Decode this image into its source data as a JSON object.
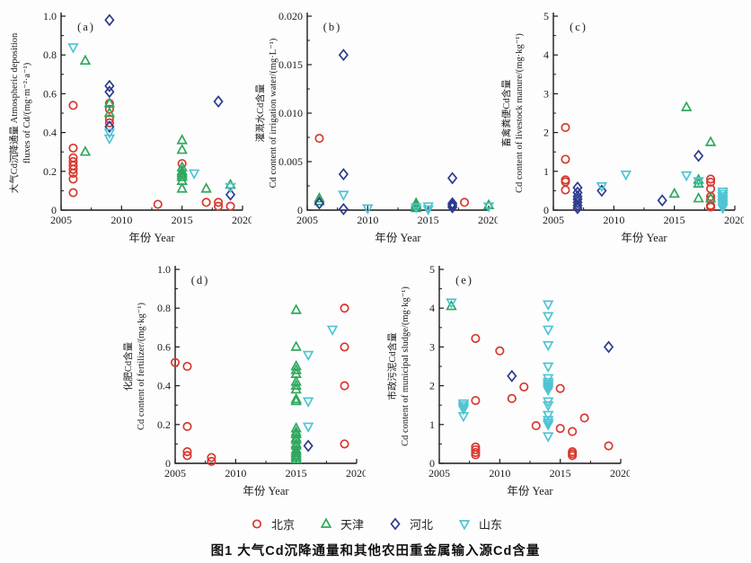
{
  "figure": {
    "caption": "图1  大气Cd沉降通量和其他农田重金属输入源Cd含量",
    "axis_color": "#1a1a1a",
    "legend": [
      {
        "label": "北京",
        "marker": "circle",
        "color": "#d7372e"
      },
      {
        "label": "天津",
        "marker": "triangle-up",
        "color": "#2fa85e"
      },
      {
        "label": "河北",
        "marker": "diamond",
        "color": "#2c3a8e"
      },
      {
        "label": "山东",
        "marker": "triangle-down",
        "color": "#4fc4d3"
      }
    ]
  },
  "chart_data": [
    {
      "type": "scatter",
      "panel": "(a)",
      "ylabel_line1": "大气Cd沉降通量 Atmospheric deposition",
      "ylabel_line2": "fluxes of Cd/(mg·m⁻²·a⁻¹)",
      "xlabel": "年份 Year",
      "xlim": [
        2005,
        2020
      ],
      "xticks": [
        2005,
        2010,
        2015,
        2020
      ],
      "ylim": [
        0,
        1.0
      ],
      "yticks": [
        0,
        0.2,
        0.4,
        0.6,
        0.8,
        1.0
      ],
      "ytick_labels": [
        "0",
        "0.2",
        "0.4",
        "0.6",
        "0.8",
        "1.0"
      ],
      "grid": false,
      "series": [
        {
          "name": "北京",
          "points": [
            [
              2006,
              0.54
            ],
            [
              2006,
              0.32
            ],
            [
              2006,
              0.27
            ],
            [
              2006,
              0.25
            ],
            [
              2006,
              0.23
            ],
            [
              2006,
              0.21
            ],
            [
              2006,
              0.19
            ],
            [
              2006,
              0.16
            ],
            [
              2006,
              0.09
            ],
            [
              2009,
              0.55
            ],
            [
              2009,
              0.52
            ],
            [
              2009,
              0.47
            ],
            [
              2009,
              0.45
            ],
            [
              2013,
              0.03
            ],
            [
              2015,
              0.24
            ],
            [
              2017,
              0.04
            ],
            [
              2018,
              0.04
            ],
            [
              2018,
              0.02
            ],
            [
              2019,
              0.02
            ]
          ]
        },
        {
          "name": "天津",
          "points": [
            [
              2007,
              0.77
            ],
            [
              2007,
              0.3
            ],
            [
              2009,
              0.55
            ],
            [
              2009,
              0.5
            ],
            [
              2015,
              0.36
            ],
            [
              2015,
              0.31
            ],
            [
              2015,
              0.22
            ],
            [
              2015,
              0.2
            ],
            [
              2015,
              0.19
            ],
            [
              2015,
              0.18
            ],
            [
              2015,
              0.17
            ],
            [
              2015,
              0.15
            ],
            [
              2015,
              0.11
            ],
            [
              2017,
              0.11
            ],
            [
              2019,
              0.13
            ]
          ]
        },
        {
          "name": "河北",
          "points": [
            [
              2009,
              0.98
            ],
            [
              2009,
              0.64
            ],
            [
              2009,
              0.61
            ],
            [
              2009,
              0.43
            ],
            [
              2018,
              0.56
            ],
            [
              2019,
              0.08
            ]
          ]
        },
        {
          "name": "山东",
          "points": [
            [
              2006,
              0.84
            ],
            [
              2009,
              0.4
            ],
            [
              2009,
              0.37
            ],
            [
              2016,
              0.19
            ],
            [
              2019,
              0.12
            ]
          ]
        }
      ]
    },
    {
      "type": "scatter",
      "panel": "(b)",
      "ylabel_line1": "灌溉水Cd含量",
      "ylabel_line2": "Cd content of irrigation water/(mg·L⁻¹)",
      "xlabel": "年份 Year",
      "xlim": [
        2005,
        2020
      ],
      "xticks": [
        2005,
        2010,
        2015,
        2020
      ],
      "ylim": [
        0,
        0.02
      ],
      "yticks": [
        0,
        0.005,
        0.01,
        0.015,
        0.02
      ],
      "ytick_labels": [
        "0",
        "0.005",
        "0.010",
        "0.015",
        "0.020"
      ],
      "grid": false,
      "series": [
        {
          "name": "北京",
          "points": [
            [
              2006,
              0.0074
            ],
            [
              2018,
              0.0008
            ]
          ]
        },
        {
          "name": "天津",
          "points": [
            [
              2006,
              0.0012
            ],
            [
              2006,
              0.0009
            ],
            [
              2014,
              0.0007
            ],
            [
              2014,
              0.0005
            ],
            [
              2014,
              0.0004
            ],
            [
              2014,
              0.0002
            ],
            [
              2020,
              0.0005
            ]
          ]
        },
        {
          "name": "河北",
          "points": [
            [
              2006,
              0.0007
            ],
            [
              2008,
              0.016
            ],
            [
              2008,
              0.0037
            ],
            [
              2008,
              0.0001
            ],
            [
              2017,
              0.0033
            ],
            [
              2017,
              0.0007
            ],
            [
              2017,
              0.0005
            ],
            [
              2017,
              0.0003
            ]
          ]
        },
        {
          "name": "山东",
          "points": [
            [
              2008,
              0.0016
            ],
            [
              2010,
              0.0002
            ],
            [
              2014,
              0.0003
            ],
            [
              2015,
              0.0004
            ],
            [
              2015,
              0.0001
            ],
            [
              2020,
              0.0004
            ]
          ]
        }
      ]
    },
    {
      "type": "scatter",
      "panel": "(c)",
      "ylabel_line1": "畜禽粪便Cd含量",
      "ylabel_line2": "Cd content of livestock manure/(mg·kg⁻¹)",
      "xlabel": "年份 Year",
      "xlim": [
        2005,
        2020
      ],
      "xticks": [
        2005,
        2010,
        2015,
        2020
      ],
      "ylim": [
        0,
        5
      ],
      "yticks": [
        0,
        1,
        2,
        3,
        4,
        5
      ],
      "ytick_labels": [
        "0",
        "1",
        "2",
        "3",
        "4",
        "5"
      ],
      "grid": false,
      "series": [
        {
          "name": "北京",
          "points": [
            [
              2006,
              2.13
            ],
            [
              2006,
              1.31
            ],
            [
              2006,
              0.78
            ],
            [
              2006,
              0.73
            ],
            [
              2006,
              0.52
            ],
            [
              2018,
              0.8
            ],
            [
              2018,
              0.72
            ],
            [
              2018,
              0.55
            ],
            [
              2018,
              0.35
            ],
            [
              2018,
              0.28
            ],
            [
              2018,
              0.12
            ],
            [
              2018,
              0.08
            ]
          ]
        },
        {
          "name": "天津",
          "points": [
            [
              2015,
              0.42
            ],
            [
              2016,
              2.65
            ],
            [
              2017,
              0.78
            ],
            [
              2017,
              0.68
            ],
            [
              2017,
              0.3
            ],
            [
              2018,
              1.75
            ],
            [
              2018,
              0.3
            ]
          ]
        },
        {
          "name": "河北",
          "points": [
            [
              2007,
              0.58
            ],
            [
              2007,
              0.45
            ],
            [
              2007,
              0.35
            ],
            [
              2007,
              0.28
            ],
            [
              2007,
              0.2
            ],
            [
              2007,
              0.12
            ],
            [
              2007,
              0.05
            ],
            [
              2009,
              0.5
            ],
            [
              2014,
              0.25
            ],
            [
              2017,
              1.4
            ]
          ]
        },
        {
          "name": "山东",
          "points": [
            [
              2009,
              0.62
            ],
            [
              2011,
              0.92
            ],
            [
              2016,
              0.9
            ],
            [
              2017,
              0.75
            ],
            [
              2019,
              0.48
            ],
            [
              2019,
              0.42
            ],
            [
              2019,
              0.36
            ],
            [
              2019,
              0.3
            ],
            [
              2019,
              0.24
            ],
            [
              2019,
              0.18
            ],
            [
              2019,
              0.12
            ],
            [
              2019,
              0.06
            ]
          ]
        }
      ]
    },
    {
      "type": "scatter",
      "panel": "(d)",
      "ylabel_line1": "化肥Cd含量",
      "ylabel_line2": "Cd content of fertilizer/(mg·kg⁻¹)",
      "xlabel": "年份 Year",
      "xlim": [
        2005,
        2020
      ],
      "xticks": [
        2005,
        2010,
        2015,
        2020
      ],
      "ylim": [
        0,
        1.0
      ],
      "yticks": [
        0,
        0.2,
        0.4,
        0.6,
        0.8,
        1.0
      ],
      "ytick_labels": [
        "0",
        "0.2",
        "0.4",
        "0.6",
        "0.8",
        "1.0"
      ],
      "grid": false,
      "series": [
        {
          "name": "北京",
          "points": [
            [
              2005,
              0.52
            ],
            [
              2006,
              0.5
            ],
            [
              2006,
              0.19
            ],
            [
              2006,
              0.06
            ],
            [
              2006,
              0.04
            ],
            [
              2008,
              0.03
            ],
            [
              2008,
              0.01
            ],
            [
              2019,
              0.8
            ],
            [
              2019,
              0.6
            ],
            [
              2019,
              0.4
            ],
            [
              2019,
              0.1
            ]
          ]
        },
        {
          "name": "天津",
          "points": [
            [
              2015,
              0.79
            ],
            [
              2015,
              0.6
            ],
            [
              2015,
              0.5
            ],
            [
              2015,
              0.48
            ],
            [
              2015,
              0.46
            ],
            [
              2015,
              0.42
            ],
            [
              2015,
              0.4
            ],
            [
              2015,
              0.38
            ],
            [
              2015,
              0.33
            ],
            [
              2015,
              0.32
            ],
            [
              2015,
              0.18
            ],
            [
              2015,
              0.16
            ],
            [
              2015,
              0.15
            ],
            [
              2015,
              0.13
            ],
            [
              2015,
              0.12
            ],
            [
              2015,
              0.1
            ],
            [
              2015,
              0.09
            ],
            [
              2015,
              0.07
            ],
            [
              2015,
              0.06
            ],
            [
              2015,
              0.05
            ],
            [
              2015,
              0.04
            ],
            [
              2015,
              0.03
            ],
            [
              2015,
              0.02
            ]
          ]
        },
        {
          "name": "河北",
          "points": [
            [
              2016,
              0.09
            ]
          ]
        },
        {
          "name": "山东",
          "points": [
            [
              2016,
              0.56
            ],
            [
              2016,
              0.32
            ],
            [
              2016,
              0.19
            ],
            [
              2018,
              0.69
            ]
          ]
        }
      ]
    },
    {
      "type": "scatter",
      "panel": "(e)",
      "ylabel_line1": "市政污泥Cd含量",
      "ylabel_line2": "Cd content of municipal sludge/(mg·kg⁻¹)",
      "xlabel": "年份 Year",
      "xlim": [
        2005,
        2020
      ],
      "xticks": [
        2005,
        2010,
        2015,
        2020
      ],
      "ylim": [
        0,
        5
      ],
      "yticks": [
        0,
        1,
        2,
        3,
        4,
        5
      ],
      "ytick_labels": [
        "0",
        "1",
        "2",
        "3",
        "4",
        "5"
      ],
      "grid": false,
      "series": [
        {
          "name": "北京",
          "points": [
            [
              2008,
              3.22
            ],
            [
              2008,
              1.62
            ],
            [
              2008,
              0.42
            ],
            [
              2008,
              0.35
            ],
            [
              2008,
              0.28
            ],
            [
              2008,
              0.22
            ],
            [
              2010,
              2.9
            ],
            [
              2011,
              1.67
            ],
            [
              2012,
              1.97
            ],
            [
              2013,
              0.97
            ],
            [
              2014,
              1.97
            ],
            [
              2015,
              1.93
            ],
            [
              2015,
              0.9
            ],
            [
              2016,
              0.82
            ],
            [
              2016,
              0.3
            ],
            [
              2016,
              0.25
            ],
            [
              2016,
              0.2
            ],
            [
              2017,
              1.17
            ],
            [
              2019,
              0.45
            ]
          ]
        },
        {
          "name": "天津",
          "points": [
            [
              2006,
              4.05
            ]
          ]
        },
        {
          "name": "河北",
          "points": [
            [
              2011,
              2.25
            ],
            [
              2019,
              3.0
            ]
          ]
        },
        {
          "name": "山东",
          "points": [
            [
              2006,
              4.15
            ],
            [
              2007,
              1.55
            ],
            [
              2007,
              1.5
            ],
            [
              2007,
              1.45
            ],
            [
              2007,
              1.4
            ],
            [
              2007,
              1.22
            ],
            [
              2014,
              4.1
            ],
            [
              2014,
              3.8
            ],
            [
              2014,
              3.45
            ],
            [
              2014,
              3.05
            ],
            [
              2014,
              2.5
            ],
            [
              2014,
              2.2
            ],
            [
              2014,
              2.1
            ],
            [
              2014,
              2.05
            ],
            [
              2014,
              2.0
            ],
            [
              2014,
              1.95
            ],
            [
              2014,
              1.9
            ],
            [
              2014,
              1.6
            ],
            [
              2014,
              1.5
            ],
            [
              2014,
              1.25
            ],
            [
              2014,
              1.12
            ],
            [
              2014,
              1.05
            ],
            [
              2014,
              1.0
            ],
            [
              2014,
              0.7
            ]
          ]
        }
      ]
    }
  ]
}
